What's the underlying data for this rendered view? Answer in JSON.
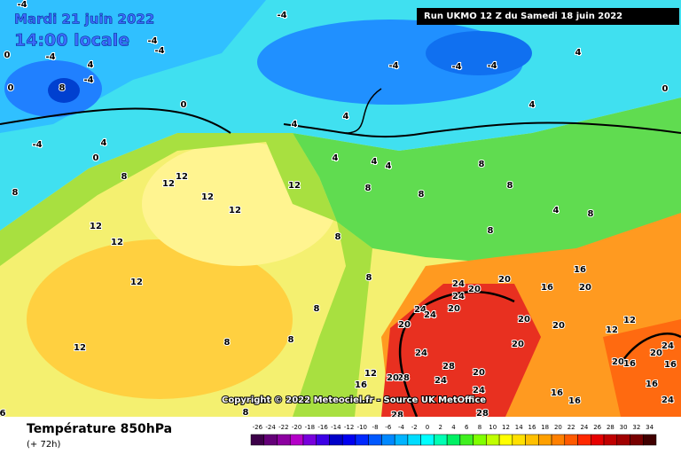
{
  "header": {
    "date": "Mardi 21 juin 2022",
    "time": "14:00 locale",
    "run": "Run UKMO 12 Z du Samedi 18 juin 2022"
  },
  "copyright": "Copyright © 2022 Meteociel.fr - Source UK MetOffice",
  "footer": {
    "title": "Température 850hPa",
    "lead": "(+ 72h)"
  },
  "scale": {
    "ticks": [
      -26,
      -24,
      -22,
      -20,
      -18,
      -16,
      -14,
      -12,
      -10,
      -8,
      -6,
      -4,
      -2,
      0,
      2,
      4,
      6,
      8,
      10,
      12,
      14,
      16,
      18,
      20,
      22,
      24,
      26,
      28,
      30,
      32,
      34
    ],
    "colors": [
      "#3c0048",
      "#640078",
      "#8c00a0",
      "#b400c8",
      "#7800dc",
      "#3c00e6",
      "#0000c8",
      "#0000f0",
      "#0028ff",
      "#0058ff",
      "#0088ff",
      "#00b4ff",
      "#00dcff",
      "#00ffff",
      "#00ffb4",
      "#00f064",
      "#40f020",
      "#80ff00",
      "#c0ff00",
      "#ffff00",
      "#ffe000",
      "#ffc000",
      "#ffa000",
      "#ff8000",
      "#ff5a00",
      "#ff2800",
      "#e60000",
      "#c00000",
      "#a00000",
      "#780000",
      "#400000"
    ]
  },
  "map": {
    "labels": [
      -4,
      -4,
      -4,
      -4,
      -4,
      0,
      4,
      -4,
      8,
      0,
      0,
      -4,
      -4,
      -4,
      4,
      0,
      4,
      4,
      4,
      4,
      -4,
      0,
      4,
      4,
      4,
      8,
      12,
      12,
      12,
      12,
      12,
      8,
      12,
      12,
      12,
      12,
      8,
      8,
      8,
      8,
      4,
      8,
      8,
      8,
      8,
      8,
      8,
      8,
      16,
      16,
      20,
      20,
      24,
      20,
      24,
      20,
      24,
      24,
      20,
      20,
      20,
      12,
      12,
      20,
      24,
      20,
      20,
      16,
      16,
      24,
      28,
      20,
      24,
      28,
      20,
      12,
      16,
      24,
      16,
      16,
      28,
      28,
      8,
      6,
      16,
      24
    ]
  }
}
